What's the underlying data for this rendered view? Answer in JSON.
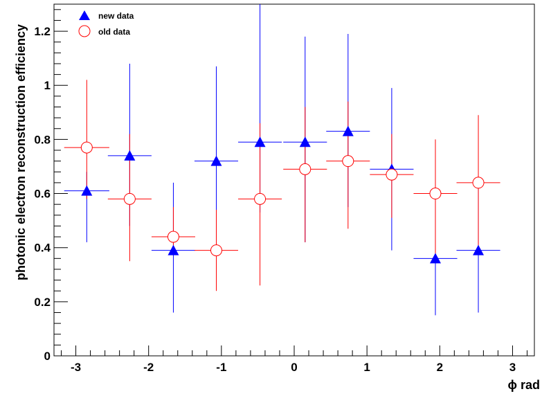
{
  "chart_data": {
    "type": "scatter",
    "xlabel": "ϕ rad",
    "ylabel": "photonic electron reconstruction efficiency",
    "xlim": [
      -3.3,
      3.3
    ],
    "ylim": [
      0,
      1.3
    ],
    "xticks": [
      -3,
      -2,
      -1,
      0,
      1,
      2,
      3
    ],
    "yticks": [
      0,
      0.2,
      0.4,
      0.6,
      0.8,
      1,
      1.2
    ],
    "grid": false,
    "legend_position": "top-left",
    "series": [
      {
        "name": "new data",
        "marker": "triangle",
        "color": "#0000ff",
        "x": [
          -2.85,
          -2.26,
          -1.66,
          -1.07,
          -0.47,
          0.15,
          0.74,
          1.34,
          1.94,
          2.53
        ],
        "xerr": [
          0.31,
          0.3,
          0.3,
          0.3,
          0.3,
          0.3,
          0.3,
          0.3,
          0.3,
          0.3
        ],
        "y": [
          0.61,
          0.74,
          0.39,
          0.72,
          0.79,
          0.79,
          0.83,
          0.69,
          0.36,
          0.39
        ],
        "yerr_low": [
          0.19,
          0.26,
          0.23,
          0.33,
          0.26,
          0.37,
          0.28,
          0.3,
          0.21,
          0.23
        ],
        "yerr_high": [
          0.07,
          0.34,
          0.25,
          0.35,
          0.51,
          0.39,
          0.36,
          0.3,
          0.22,
          0.23
        ]
      },
      {
        "name": "old data",
        "marker": "open-circle",
        "color": "#ff0000",
        "x": [
          -2.85,
          -2.26,
          -1.66,
          -1.07,
          -0.47,
          0.15,
          0.74,
          1.34,
          1.94,
          2.53
        ],
        "xerr": [
          0.31,
          0.3,
          0.3,
          0.3,
          0.3,
          0.3,
          0.3,
          0.3,
          0.3,
          0.3
        ],
        "y": [
          0.77,
          0.58,
          0.44,
          0.39,
          0.58,
          0.69,
          0.72,
          0.67,
          0.6,
          0.64
        ],
        "yerr_low": [
          0.19,
          0.23,
          0.05,
          0.15,
          0.32,
          0.27,
          0.25,
          0.16,
          0.25,
          0.26
        ],
        "yerr_high": [
          0.25,
          0.24,
          0.11,
          0.15,
          0.28,
          0.23,
          0.22,
          0.15,
          0.2,
          0.25
        ]
      }
    ]
  }
}
